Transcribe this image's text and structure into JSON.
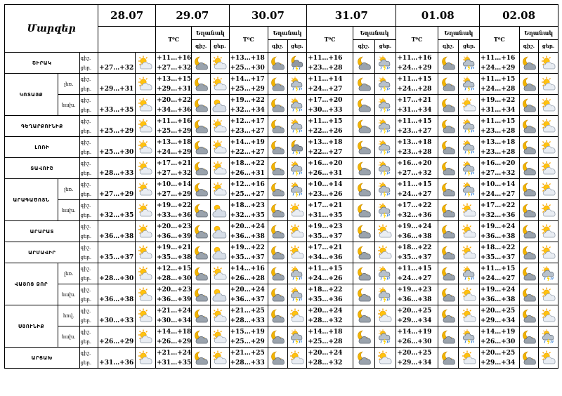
{
  "header": {
    "regions_label": "Մարզեր",
    "temp_label": "T⁰C",
    "weather_label": "Եղանակ",
    "day_label": "ցեր.",
    "night_label": "գիշ.",
    "dates": [
      "28.07",
      "29.07",
      "30.07",
      "31.07",
      "01.08",
      "02.08"
    ]
  },
  "row_labels": {
    "night": "գիշ.",
    "day": "ցեր."
  },
  "regions": [
    {
      "name": "ՇԻՐԱԿ",
      "rows": [
        {
          "alt": "",
          "d0": "+27…+32",
          "t": [
            [
              "+11…+16",
              "+27…+32"
            ],
            [
              "+13…+18",
              "+25…+30"
            ],
            [
              "+11…+16",
              "+23…+28"
            ],
            [
              "+11…+16",
              "+24…+29"
            ],
            [
              "+11…+16",
              "+24…+29"
            ]
          ],
          "icons": [
            "sun-cloud",
            "moon-cloud",
            "sun-cloud",
            "moon-cloud",
            "moon-cloud-rain",
            "moon-cloud",
            "sun-rain",
            "moon-cloud",
            "sun-rain",
            "moon-cloud",
            "sun-cloud"
          ]
        }
      ]
    },
    {
      "name": "ԿՈՏԱՅՔ",
      "rows": [
        {
          "alt": "լեռ.",
          "d0": "+29…+31",
          "t": [
            [
              "+13…+15",
              "+29…+31"
            ],
            [
              "+14…+17",
              "+25…+29"
            ],
            [
              "+11…+14",
              "+24…+27"
            ],
            [
              "+11…+15",
              "+24…+28"
            ],
            [
              "+11…+15",
              "+24…+28"
            ]
          ],
          "icons": [
            "sun-cloud",
            "moon-cloud",
            "sun-cloud",
            "moon-cloud",
            "sun-rain",
            "moon-cloud",
            "sun-rain",
            "moon-cloud",
            "sun-rain",
            "moon-cloud",
            "sun-cloud"
          ]
        },
        {
          "alt": "նախ.",
          "d0": "+33…+35",
          "t": [
            [
              "+20…+22",
              "+34…+36"
            ],
            [
              "+19…+22",
              "+32…+34"
            ],
            [
              "+17…+20",
              "+30…+33"
            ],
            [
              "+17…+21",
              "+31…+34"
            ],
            [
              "+19…+22",
              "+31…+34"
            ]
          ],
          "icons": [
            "sun-cloud",
            "moon-cloud",
            "sun-cloud-big",
            "moon-cloud",
            "sun-rain",
            "moon-cloud",
            "sun-rain",
            "moon-cloud",
            "sun-cloud",
            "moon-cloud",
            "sun-cloud"
          ]
        }
      ]
    },
    {
      "name": "ԳԵՂԱՐՔՈՒՆԻՔ",
      "rows": [
        {
          "alt": "",
          "d0": "+25…+29",
          "t": [
            [
              "+11…+16",
              "+25…+29"
            ],
            [
              "+12…+17",
              "+23…+27"
            ],
            [
              "+11…+15",
              "+22…+26"
            ],
            [
              "+11…+15",
              "+23…+27"
            ],
            [
              "+11…+15",
              "+23…+28"
            ]
          ],
          "icons": [
            "sun-cloud",
            "moon-cloud",
            "sun-cloud",
            "moon-cloud",
            "sun-rain",
            "moon-cloud",
            "sun-rain",
            "moon-cloud",
            "sun-rain",
            "moon-cloud",
            "sun-cloud"
          ]
        }
      ]
    },
    {
      "name": "ԼՈՌԻ",
      "rows": [
        {
          "alt": "",
          "d0": "+25…+30",
          "t": [
            [
              "+13…+18",
              "+24…+29"
            ],
            [
              "+14…+19",
              "+22…+27"
            ],
            [
              "+13…+18",
              "+22…+27"
            ],
            [
              "+13…+18",
              "+23…+28"
            ],
            [
              "+13…+18",
              "+23…+28"
            ]
          ],
          "icons": [
            "sun-cloud",
            "moon-cloud",
            "sun-cloud",
            "moon-cloud",
            "moon-cloud-rain",
            "moon-cloud",
            "sun-rain",
            "moon-cloud",
            "sun-rain",
            "moon-cloud",
            "sun-cloud"
          ]
        }
      ]
    },
    {
      "name": "ՏԱՎՈՒՇ",
      "rows": [
        {
          "alt": "",
          "d0": "+28…+33",
          "t": [
            [
              "+17…+21",
              "+27…+32"
            ],
            [
              "+18…+22",
              "+26…+31"
            ],
            [
              "+16…+20",
              "+26…+31"
            ],
            [
              "+16…+20",
              "+27…+32"
            ],
            [
              "+16…+20",
              "+27…+32"
            ]
          ],
          "icons": [
            "sun-cloud",
            "moon-cloud",
            "sun-cloud",
            "moon-cloud",
            "sun-rain",
            "moon-cloud",
            "sun-rain",
            "moon-cloud",
            "sun-rain",
            "moon-cloud",
            "sun-cloud"
          ]
        }
      ]
    },
    {
      "name": "ԱՐԱԳԱԾՈՏՆ",
      "rows": [
        {
          "alt": "լեռ.",
          "d0": "+27…+29",
          "t": [
            [
              "+10…+14",
              "+27…+29"
            ],
            [
              "+12…+16",
              "+25…+27"
            ],
            [
              "+10…+14",
              "+23…+26"
            ],
            [
              "+11…+15",
              "+24…+27"
            ],
            [
              "+10…+14",
              "+24…+27"
            ]
          ],
          "icons": [
            "sun-cloud",
            "moon-cloud",
            "sun-cloud",
            "moon-cloud",
            "sun-rain",
            "moon-cloud",
            "sun-rain",
            "moon-cloud",
            "sun-rain",
            "moon-cloud",
            "sun-cloud"
          ]
        },
        {
          "alt": "նախ.",
          "d0": "+32…+35",
          "t": [
            [
              "+19…+22",
              "+33…+36"
            ],
            [
              "+18…+23",
              "+32…+35"
            ],
            [
              "+17…+21",
              "+31…+35"
            ],
            [
              "+17…+22",
              "+32…+36"
            ],
            [
              "+17…+22",
              "+32…+36"
            ]
          ],
          "icons": [
            "sun-cloud",
            "moon-cloud",
            "sun-cloud-big",
            "moon-cloud",
            "sun-cloud",
            "moon-cloud",
            "sun-rain",
            "moon-cloud",
            "sun-cloud",
            "moon-cloud",
            "sun-cloud"
          ]
        }
      ]
    },
    {
      "name": "ԱՐԱՐԱՏ",
      "rows": [
        {
          "alt": "",
          "d0": "+36…+38",
          "t": [
            [
              "+20…+23",
              "+36…+39"
            ],
            [
              "+20…+24",
              "+36…+38"
            ],
            [
              "+19…+23",
              "+35…+37"
            ],
            [
              "+19…+24",
              "+36…+38"
            ],
            [
              "+19…+24",
              "+36…+38"
            ]
          ],
          "icons": [
            "sun-cloud",
            "moon-cloud",
            "sun-cloud-big",
            "moon-cloud",
            "sun-cloud",
            "moon-cloud",
            "sun-cloud",
            "moon-cloud",
            "sun-cloud",
            "moon-cloud",
            "sun-cloud"
          ]
        }
      ]
    },
    {
      "name": "ԱՐՄԱՎԻՐ",
      "rows": [
        {
          "alt": "",
          "d0": "+35…+37",
          "t": [
            [
              "+19…+21",
              "+35…+38"
            ],
            [
              "+19…+22",
              "+35…+37"
            ],
            [
              "+17…+21",
              "+34…+36"
            ],
            [
              "+18…+22",
              "+35…+37"
            ],
            [
              "+18…+22",
              "+35…+37"
            ]
          ],
          "icons": [
            "sun-cloud",
            "moon-cloud",
            "sun-cloud-big",
            "moon-cloud",
            "sun-cloud",
            "moon-cloud",
            "sun-cloud",
            "moon-cloud",
            "sun-cloud",
            "moon-cloud",
            "sun-cloud"
          ]
        }
      ]
    },
    {
      "name": "ՎԱՅՈՑ ՁՈՐ",
      "rows": [
        {
          "alt": "լեռ.",
          "d0": "+28…+30",
          "t": [
            [
              "+12…+15",
              "+28…+30"
            ],
            [
              "+14…+16",
              "+26…+28"
            ],
            [
              "+11…+15",
              "+24…+26"
            ],
            [
              "+11…+15",
              "+24…+27"
            ],
            [
              "+11…+15",
              "+24…+27"
            ]
          ],
          "icons": [
            "sun-cloud",
            "moon-cloud",
            "sun-cloud",
            "moon-cloud",
            "sun-rain",
            "moon-cloud",
            "sun-rain",
            "moon-cloud",
            "sun-rain",
            "moon-cloud",
            "sun-rain"
          ]
        },
        {
          "alt": "նախ.",
          "d0": "+36…+38",
          "t": [
            [
              "+20…+23",
              "+36…+39"
            ],
            [
              "+20…+24",
              "+36…+37"
            ],
            [
              "+18…+22",
              "+35…+36"
            ],
            [
              "+19…+23",
              "+36…+38"
            ],
            [
              "+19…+24",
              "+36…+38"
            ]
          ],
          "icons": [
            "sun-cloud",
            "moon-cloud",
            "sun-cloud-big",
            "moon-cloud",
            "sun-rain",
            "moon-cloud",
            "sun-rain",
            "moon-cloud",
            "sun-cloud",
            "moon-cloud",
            "sun-cloud"
          ]
        }
      ]
    },
    {
      "name": "ՍՅՈՒՆԻՔ",
      "rows": [
        {
          "alt": "հով.",
          "d0": "+30…+33",
          "t": [
            [
              "+21…+24",
              "+30…+34"
            ],
            [
              "+21…+25",
              "+28…+33"
            ],
            [
              "+20…+24",
              "+28…+32"
            ],
            [
              "+20…+25",
              "+29…+34"
            ],
            [
              "+20…+25",
              "+29…+34"
            ]
          ],
          "icons": [
            "sun-cloud",
            "moon-cloud",
            "sun-cloud",
            "moon-cloud",
            "sun-cloud",
            "moon-cloud",
            "sun-cloud",
            "moon-cloud",
            "sun-cloud",
            "moon-cloud",
            "sun-cloud"
          ]
        },
        {
          "alt": "նախ.",
          "d0": "+26…+29",
          "t": [
            [
              "+14…+18",
              "+26…+29"
            ],
            [
              "+15…+19",
              "+25…+29"
            ],
            [
              "+14…+18",
              "+25…+28"
            ],
            [
              "+14…+19",
              "+26…+30"
            ],
            [
              "+14…+19",
              "+26…+30"
            ]
          ],
          "icons": [
            "sun-cloud",
            "moon-cloud",
            "sun-cloud",
            "moon-cloud",
            "sun-rain",
            "moon-cloud",
            "sun-rain",
            "moon-cloud",
            "sun-rain",
            "moon-cloud",
            "sun-rain"
          ]
        }
      ]
    },
    {
      "name": "ԱՐՑԱԽ",
      "rows": [
        {
          "alt": "",
          "d0": "+31…+36",
          "t": [
            [
              "+21…+24",
              "+31…+35"
            ],
            [
              "+21…+25",
              "+28…+33"
            ],
            [
              "+20…+24",
              "+28…+32"
            ],
            [
              "+20…+25",
              "+29…+34"
            ],
            [
              "+20…+25",
              "+29…+34"
            ]
          ],
          "icons": [
            "sun-cloud",
            "moon-cloud",
            "sun-cloud",
            "moon-cloud",
            "sun-cloud",
            "moon-cloud",
            "sun-cloud",
            "moon-cloud",
            "sun-cloud",
            "moon-cloud",
            "sun-cloud"
          ]
        }
      ]
    }
  ]
}
